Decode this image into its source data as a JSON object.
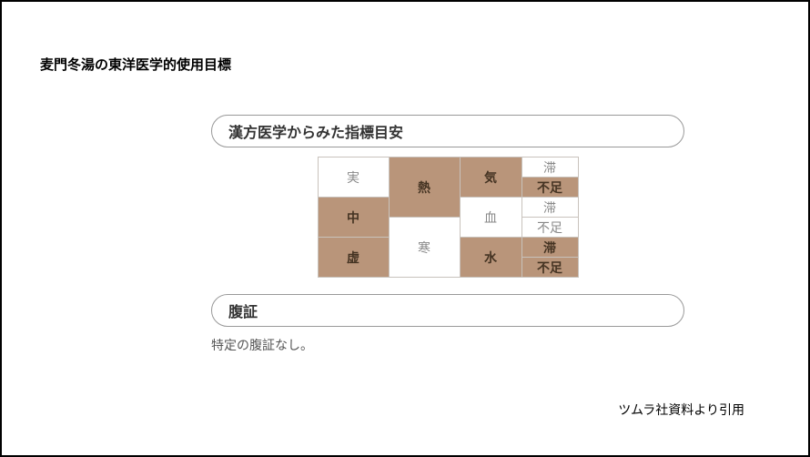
{
  "page": {
    "title": "麦門冬湯の東洋医学的使用目標",
    "citation": "ツムラ社資料より引用"
  },
  "section1": {
    "header": "漢方医学からみた指標目安",
    "grid": {
      "colA": {
        "r1": "実",
        "r2": "中",
        "r3": "虚"
      },
      "colB": {
        "r1": "熱",
        "r2": "寒"
      },
      "colC": {
        "r1": "気",
        "r2": "血",
        "r3": "水"
      },
      "colD": {
        "r1a": "滞",
        "r1b": "不足",
        "r2a": "滞",
        "r2b": "不足",
        "r3a": "滞",
        "r3b": "不足"
      },
      "highlight": {
        "colA_r2": true,
        "colA_r3": true,
        "colB_r1": true,
        "colC_r1": true,
        "colC_r3": true,
        "colD_r1b": true,
        "colD_r3a": true,
        "colD_r3b": true
      }
    }
  },
  "section2": {
    "header": "腹証",
    "body": "特定の腹証なし。"
  },
  "colors": {
    "highlight_bg": "#b9957a",
    "highlight_fg": "#443322",
    "border": "#c8c2bc",
    "muted_text": "#888"
  }
}
